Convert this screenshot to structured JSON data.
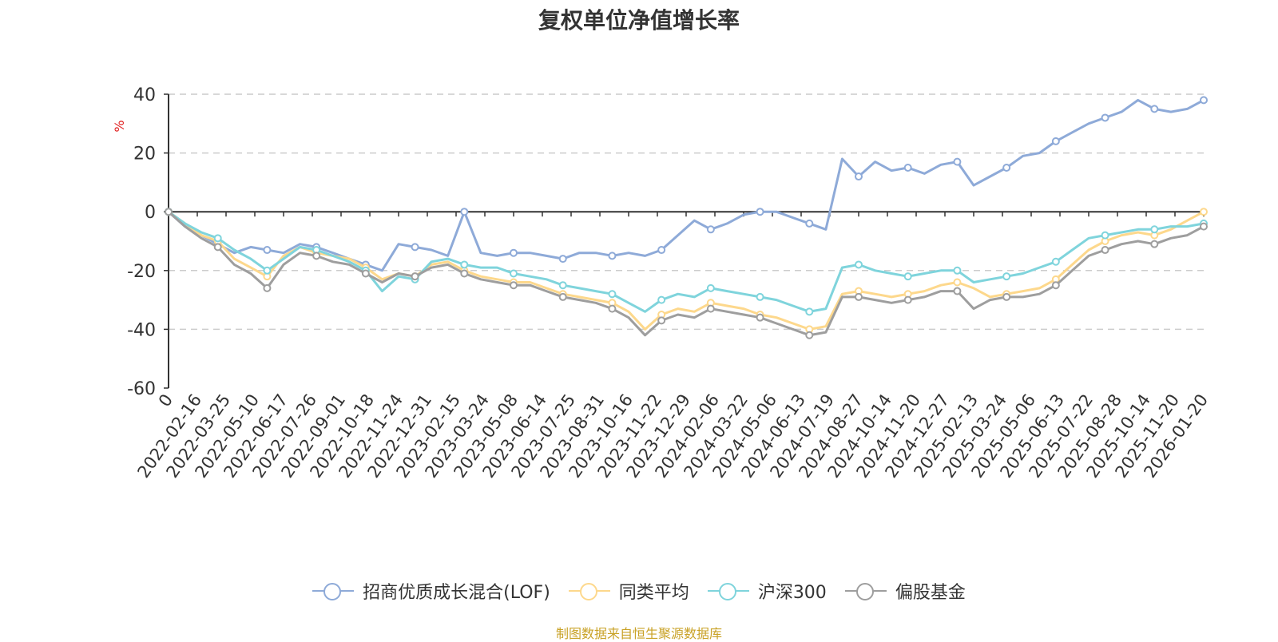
{
  "chart_data": {
    "type": "line",
    "title": "复权单位净值增长率",
    "ylabel": "%",
    "ylim": [
      -60,
      40
    ],
    "y_ticks": [
      "40",
      "20",
      "0",
      "-20",
      "-40",
      "-60"
    ],
    "x_tick_labels": [
      "0",
      "2022-02-16",
      "2022-03-25",
      "2022-05-10",
      "2022-06-17",
      "2022-07-26",
      "2022-09-01",
      "2022-10-18",
      "2022-11-24",
      "2022-12-31",
      "2023-02-15",
      "2023-03-24",
      "2023-05-08",
      "2023-06-14",
      "2023-07-25",
      "2023-08-31",
      "2023-10-16",
      "2023-11-22",
      "2023-12-29",
      "2024-02-06",
      "2024-03-22",
      "2024-05-06",
      "2024-06-13",
      "2024-07-19",
      "2024-08-27",
      "2024-10-14",
      "2024-11-20",
      "2024-12-27",
      "2025-02-13",
      "2025-03-24",
      "2025-05-06",
      "2025-06-13",
      "2025-07-22",
      "2025-08-28",
      "2025-10-14",
      "2025-11-20",
      "2026-01-20"
    ],
    "grid": "horizontal dashed",
    "legend_position": "bottom",
    "series": [
      {
        "name": "招商优质成长混合(LOF)",
        "color": "#8eaad8",
        "values": [
          0,
          -5,
          -8,
          -11,
          -14,
          -12,
          -13,
          -14,
          -11,
          -12,
          -14,
          -16,
          -18,
          -20,
          -11,
          -12,
          -13,
          -15,
          0,
          -14,
          -15,
          -14,
          -14,
          -15,
          -16,
          -14,
          -14,
          -15,
          -14,
          -15,
          -13,
          -8,
          -3,
          -6,
          -4,
          -1,
          0,
          0,
          -2,
          -4,
          -6,
          18,
          12,
          17,
          14,
          15,
          13,
          16,
          17,
          9,
          12,
          15,
          19,
          20,
          24,
          27,
          30,
          32,
          34,
          38,
          35,
          34,
          35,
          38
        ]
      },
      {
        "name": "同类平均",
        "color": "#fdd88c",
        "values": [
          0,
          -4,
          -8,
          -10,
          -16,
          -19,
          -22,
          -15,
          -12,
          -14,
          -15,
          -16,
          -19,
          -23,
          -21,
          -22,
          -18,
          -17,
          -20,
          -22,
          -23,
          -24,
          -24,
          -26,
          -28,
          -29,
          -30,
          -31,
          -34,
          -40,
          -35,
          -33,
          -34,
          -31,
          -32,
          -33,
          -35,
          -36,
          -38,
          -40,
          -39,
          -28,
          -27,
          -28,
          -29,
          -28,
          -27,
          -25,
          -24,
          -26,
          -29,
          -28,
          -27,
          -26,
          -23,
          -18,
          -13,
          -10,
          -8,
          -7,
          -8,
          -6,
          -3,
          0
        ]
      },
      {
        "name": "沪深300",
        "color": "#7fd4dc",
        "values": [
          0,
          -4,
          -7,
          -9,
          -13,
          -16,
          -20,
          -16,
          -12,
          -13,
          -15,
          -17,
          -20,
          -27,
          -22,
          -23,
          -17,
          -16,
          -18,
          -19,
          -19,
          -21,
          -22,
          -23,
          -25,
          -26,
          -27,
          -28,
          -31,
          -34,
          -30,
          -28,
          -29,
          -26,
          -27,
          -28,
          -29,
          -30,
          -32,
          -34,
          -33,
          -19,
          -18,
          -20,
          -21,
          -22,
          -21,
          -20,
          -20,
          -24,
          -23,
          -22,
          -21,
          -19,
          -17,
          -13,
          -9,
          -8,
          -7,
          -6,
          -6,
          -5,
          -5,
          -4
        ]
      },
      {
        "name": "偏股基金",
        "color": "#9e9e9e",
        "values": [
          0,
          -5,
          -9,
          -12,
          -18,
          -21,
          -26,
          -18,
          -14,
          -15,
          -17,
          -18,
          -21,
          -24,
          -21,
          -22,
          -19,
          -18,
          -21,
          -23,
          -24,
          -25,
          -25,
          -27,
          -29,
          -30,
          -31,
          -33,
          -36,
          -42,
          -37,
          -35,
          -36,
          -33,
          -34,
          -35,
          -36,
          -38,
          -40,
          -42,
          -41,
          -29,
          -29,
          -30,
          -31,
          -30,
          -29,
          -27,
          -27,
          -33,
          -30,
          -29,
          -29,
          -28,
          -25,
          -20,
          -15,
          -13,
          -11,
          -10,
          -11,
          -9,
          -8,
          -5
        ]
      }
    ]
  },
  "legend": {
    "items": [
      {
        "label": "招商优质成长混合(LOF)",
        "color": "#8eaad8"
      },
      {
        "label": "同类平均",
        "color": "#fdd88c"
      },
      {
        "label": "沪深300",
        "color": "#7fd4dc"
      },
      {
        "label": "偏股基金",
        "color": "#9e9e9e"
      }
    ]
  },
  "footer": {
    "source_note": "制图数据来自恒生聚源数据库"
  }
}
